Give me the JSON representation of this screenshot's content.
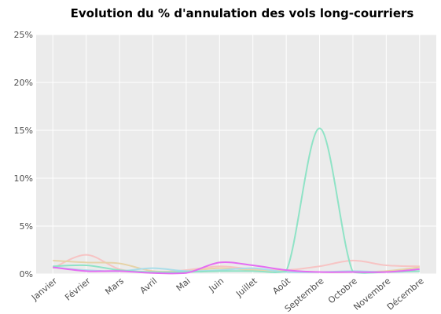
{
  "chart_data": {
    "type": "line",
    "title": "Evolution du % d'annulation des vols long-courriers",
    "categories": [
      "Janvier",
      "Février",
      "Mars",
      "Avril",
      "Mai",
      "Juin",
      "Juillet",
      "Août",
      "Septembre",
      "Octobre",
      "Novembre",
      "Décembre"
    ],
    "series": [
      {
        "color": "#f7c4c4",
        "values": [
          0.6,
          2.0,
          0.5,
          0.2,
          0.4,
          0.8,
          0.5,
          0.4,
          0.8,
          1.4,
          0.9,
          0.8
        ]
      },
      {
        "color": "#e6d3a8",
        "values": [
          1.4,
          1.2,
          1.1,
          0.3,
          0.3,
          0.6,
          0.4,
          0.3,
          0.2,
          0.2,
          0.3,
          0.7
        ]
      },
      {
        "color": "#a9dde9",
        "values": [
          0.7,
          0.4,
          0.3,
          0.6,
          0.3,
          0.4,
          0.6,
          0.2,
          0.2,
          0.3,
          0.2,
          0.3
        ]
      },
      {
        "color": "#8fe3c6",
        "values": [
          0.8,
          0.9,
          0.4,
          0.2,
          0.2,
          0.3,
          0.3,
          0.3,
          15.2,
          0.2,
          0.2,
          0.3
        ]
      },
      {
        "color": "#e46df2",
        "values": [
          0.7,
          0.3,
          0.3,
          0.1,
          0.1,
          1.2,
          0.9,
          0.4,
          0.2,
          0.2,
          0.2,
          0.5
        ]
      }
    ],
    "ylim": [
      0,
      25
    ],
    "yticks": [
      {
        "value": 0,
        "label": "0%"
      },
      {
        "value": 5,
        "label": "5%"
      },
      {
        "value": 10,
        "label": "10%"
      },
      {
        "value": 15,
        "label": "15%"
      },
      {
        "value": 20,
        "label": "20%"
      },
      {
        "value": 25,
        "label": "25%"
      }
    ],
    "grid": true
  }
}
